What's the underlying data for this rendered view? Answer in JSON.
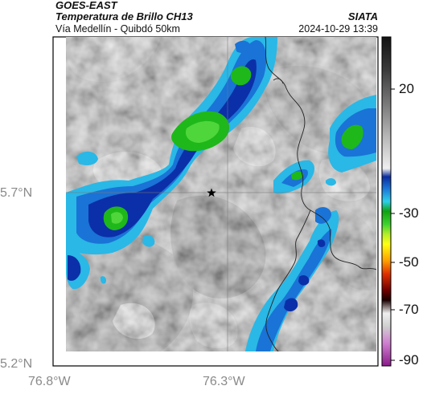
{
  "header": {
    "satellite": "GOES-EAST",
    "product": "Temperatura de Brillo CH13",
    "region": "Vía Medellín - Quibdó 50km",
    "agency": "SIATA",
    "timestamp": "2024-10-29 13:39"
  },
  "axes": {
    "lat_labels": [
      "5.7°N",
      "5.2°N"
    ],
    "lon_labels": [
      "76.8°W",
      "76.3°W"
    ]
  },
  "colorbar": {
    "ticks": [
      "20",
      "-30",
      "-50",
      "-70",
      "-90"
    ]
  },
  "map": {
    "marker_icon": "star-icon",
    "colors": {
      "cold_green": "#1fb81a",
      "dark_blue": "#0b2fa8",
      "mid_blue": "#1a73d6",
      "cyan": "#29c0e6",
      "gray_dark": "#7d7d7d",
      "gray_light": "#e6e6e6"
    }
  }
}
